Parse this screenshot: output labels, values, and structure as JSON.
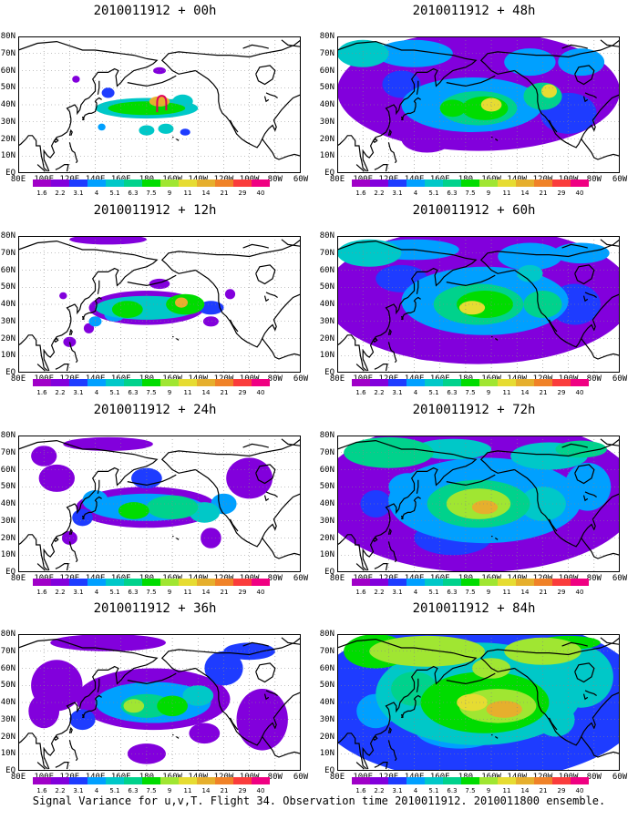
{
  "footer": "Signal Variance for u,v,T. Flight 34. Observation time 2010011912. 2010011800 ensemble.",
  "lat_labels": [
    "80N",
    "70N",
    "60N",
    "50N",
    "40N",
    "30N",
    "20N",
    "10N",
    "EQ"
  ],
  "lon_labels": [
    "80E",
    "100E",
    "120E",
    "140E",
    "160E",
    "180",
    "160W",
    "140W",
    "120W",
    "100W",
    "80W",
    "60W"
  ],
  "colorbar": {
    "labels": [
      "1.6",
      "2.2",
      "3.1",
      "4",
      "5.1",
      "6.3",
      "7.5",
      "9",
      "11",
      "14",
      "21",
      "29",
      "40"
    ],
    "colors": [
      "#a000c8",
      "#8200dc",
      "#1e3cff",
      "#00a0ff",
      "#00c8c8",
      "#00d28c",
      "#00dc00",
      "#a0e632",
      "#e6dc32",
      "#e6af2d",
      "#f08228",
      "#fa3c3c",
      "#f00082"
    ]
  },
  "panels": [
    {
      "id": "p00",
      "title": "2010011912 + 00h",
      "intensity": 0
    },
    {
      "id": "p12",
      "title": "2010011912 + 12h",
      "intensity": 1
    },
    {
      "id": "p24",
      "title": "2010011912 + 24h",
      "intensity": 2
    },
    {
      "id": "p36",
      "title": "2010011912 + 36h",
      "intensity": 3
    },
    {
      "id": "p48",
      "title": "2010011912 + 48h",
      "intensity": 4
    },
    {
      "id": "p60",
      "title": "2010011912 + 60h",
      "intensity": 5
    },
    {
      "id": "p72",
      "title": "2010011912 + 72h",
      "intensity": 6
    },
    {
      "id": "p84",
      "title": "2010011912 + 84h",
      "intensity": 7
    }
  ]
}
